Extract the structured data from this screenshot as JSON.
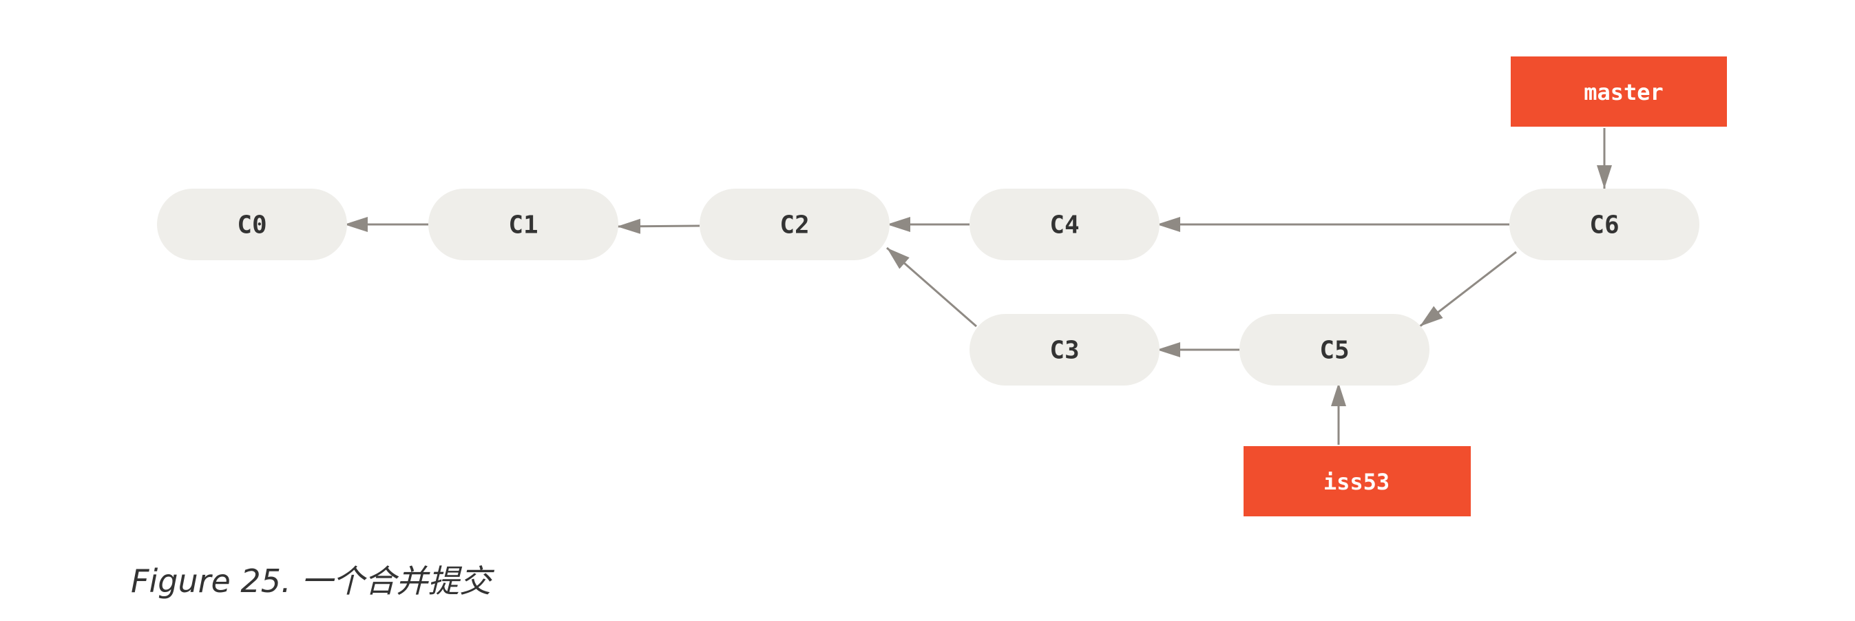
{
  "commits": {
    "c0": "C0",
    "c1": "C1",
    "c2": "C2",
    "c3": "C3",
    "c4": "C4",
    "c5": "C5",
    "c6": "C6"
  },
  "branches": {
    "master": "master",
    "iss53": "iss53"
  },
  "colors": {
    "commit_fill": "#efeeea",
    "branch_fill": "#f14e2d",
    "edge": "#8f8a84"
  },
  "caption": {
    "text": "Figure 25. 一个合并提交"
  }
}
